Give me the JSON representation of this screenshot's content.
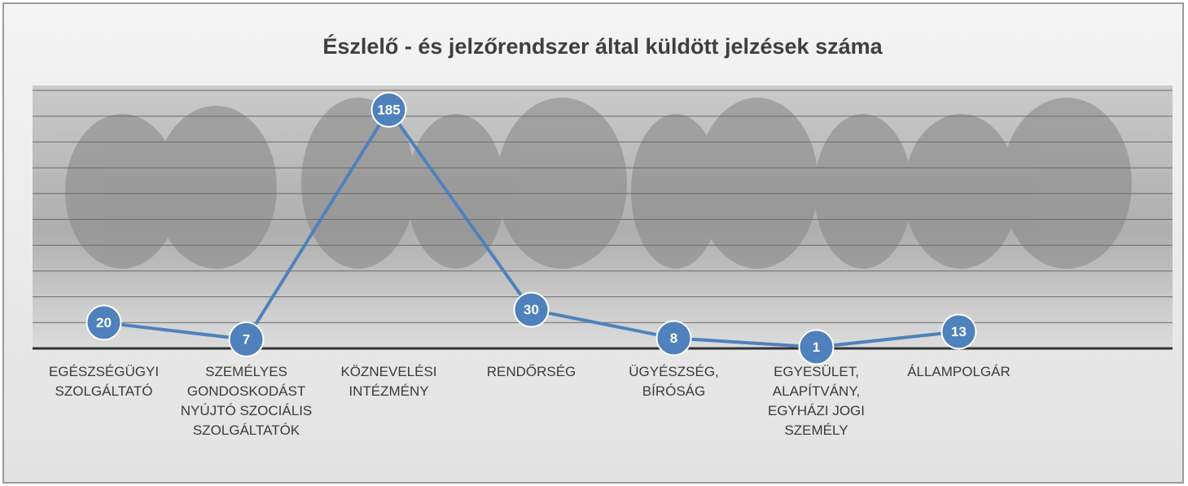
{
  "chart_data": {
    "type": "line",
    "title": "Észlelő  - és jelzőrendszer által küldött jelzések száma",
    "categories": [
      "EGÉSZSÉGÜGYI SZOLGÁLTATÓ",
      "SZEMÉLYES GONDOSKODÁST NYÚJTÓ SZOCIÁLIS SZOLGÁLTATÓK",
      "KÖZNEVELÉSI INTÉZMÉNY",
      "RENDŐRSÉG",
      "ÜGYÉSZSÉG, BÍRÓSÁG",
      "EGYESÜLET, ALAPÍTVÁNY, EGYHÁZI JOGI SZEMÉLY",
      "ÁLLAMPOLGÁR",
      null
    ],
    "series": [
      {
        "color": "#4f81bd",
        "values": [
          20,
          7,
          185,
          30,
          8,
          1,
          13,
          null
        ]
      }
    ],
    "ylim": [
      0,
      200
    ],
    "yticks": [
      0,
      20,
      40,
      60,
      80,
      100,
      120,
      140,
      160,
      180,
      200
    ],
    "grid": true
  }
}
